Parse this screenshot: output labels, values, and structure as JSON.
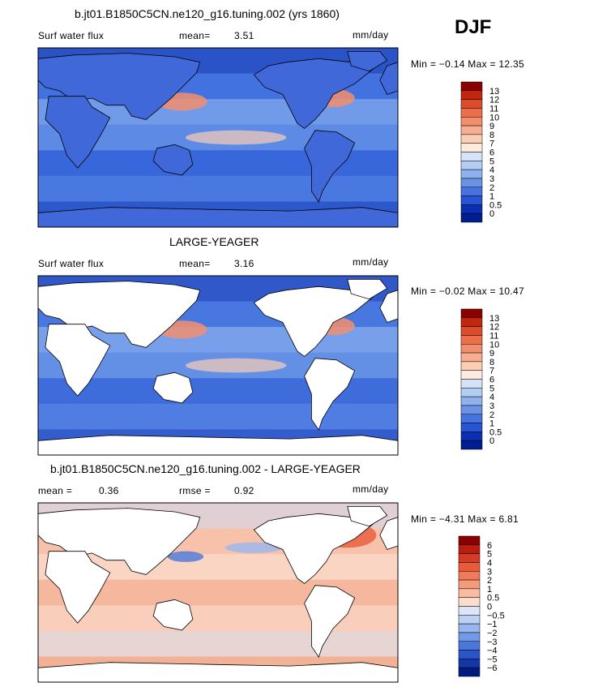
{
  "season": "DJF",
  "units": "mm/day",
  "land_color": "#ffffff",
  "panels": [
    {
      "title": "b.jt01.B1850C5CN.ne120_g16.tuning.002 (yrs 1860)",
      "variable": "Surf water flux",
      "stat1_label": "mean=",
      "stat1_value": "3.51",
      "stat2_label": "",
      "stat2_value": "",
      "units": "mm/day",
      "minmax_text": "Min =  −0.14 Max =  12.35",
      "colorbar": {
        "labels": [
          "13",
          "12",
          "11",
          "10",
          "9",
          "8",
          "7",
          "6",
          "5",
          "4",
          "3",
          "2",
          "1",
          "0.5",
          "0"
        ],
        "colors": [
          "#8b0000",
          "#c1260e",
          "#de4b28",
          "#ea6f4a",
          "#f28e6e",
          "#f7ad91",
          "#fbcdb5",
          "#fdeadd",
          "#d6e3f7",
          "#b4cdf3",
          "#8fb2ee",
          "#6a93e6",
          "#4673df",
          "#2654d3",
          "#0a2fb4",
          "#001e8c"
        ]
      },
      "ocean_fill": "#4d7fe3",
      "land_fill": "#4068d8"
    },
    {
      "title": "LARGE-YEAGER",
      "variable": "Surf water flux",
      "stat1_label": "mean=",
      "stat1_value": "3.16",
      "stat2_label": "",
      "stat2_value": "",
      "units": "mm/day",
      "minmax_text": "Min =  −0.02 Max =  10.47",
      "colorbar": {
        "labels": [
          "13",
          "12",
          "11",
          "10",
          "9",
          "8",
          "7",
          "6",
          "5",
          "4",
          "3",
          "2",
          "1",
          "0.5",
          "0"
        ],
        "colors": [
          "#8b0000",
          "#c1260e",
          "#de4b28",
          "#ea6f4a",
          "#f28e6e",
          "#f7ad91",
          "#fbcdb5",
          "#fdeadd",
          "#d6e3f7",
          "#b4cdf3",
          "#8fb2ee",
          "#6a93e6",
          "#4673df",
          "#2654d3",
          "#0a2fb4",
          "#001e8c"
        ]
      },
      "ocean_fill": "#5b8ae5",
      "land_fill": "#ffffff"
    },
    {
      "title": "b.jt01.B1850C5CN.ne120_g16.tuning.002 - LARGE-YEAGER",
      "variable": "",
      "stat1_label": "mean =",
      "stat1_value": "0.36",
      "stat2_label": "rmse =",
      "stat2_value": "0.92",
      "units": "mm/day",
      "minmax_text": "Min =  −4.31 Max =   6.81",
      "colorbar": {
        "labels": [
          "6",
          "5",
          "4",
          "3",
          "2",
          "1",
          "0.5",
          "0",
          "−0.5",
          "−1",
          "−2",
          "−3",
          "−4",
          "−5",
          "−6"
        ],
        "colors": [
          "#8b0000",
          "#b81d10",
          "#d63a22",
          "#e85a3c",
          "#f17a5a",
          "#f69a7c",
          "#f9bba2",
          "#fcdccc",
          "#dce6f7",
          "#bcd0f3",
          "#98b7ee",
          "#7199e5",
          "#4b77da",
          "#2a55c9",
          "#1237a8",
          "#001a7e"
        ]
      },
      "ocean_fill": "#f6c1a8",
      "land_fill": "#ffffff"
    }
  ],
  "chart_data": [
    {
      "type": "heatmap",
      "title": "b.jt01.B1850C5CN.ne120_g16.tuning.002 (yrs 1860)",
      "variable": "Surf water flux",
      "units": "mm/day",
      "season": "DJF",
      "mean": 3.51,
      "min": -0.14,
      "max": 12.35,
      "colorbar_levels": [
        0,
        0.5,
        1,
        2,
        3,
        4,
        5,
        6,
        7,
        8,
        9,
        10,
        11,
        12,
        13
      ],
      "lon_range": [
        0,
        360
      ],
      "lat_range": [
        -90,
        90
      ]
    },
    {
      "type": "heatmap",
      "title": "LARGE-YEAGER",
      "variable": "Surf water flux",
      "units": "mm/day",
      "mean": 3.16,
      "min": -0.02,
      "max": 10.47,
      "colorbar_levels": [
        0,
        0.5,
        1,
        2,
        3,
        4,
        5,
        6,
        7,
        8,
        9,
        10,
        11,
        12,
        13
      ],
      "lon_range": [
        0,
        360
      ],
      "lat_range": [
        -90,
        90
      ]
    },
    {
      "type": "heatmap",
      "title": "b.jt01.B1850C5CN.ne120_g16.tuning.002 - LARGE-YEAGER",
      "units": "mm/day",
      "mean": 0.36,
      "rmse": 0.92,
      "min": -4.31,
      "max": 6.81,
      "colorbar_levels": [
        -6,
        -5,
        -4,
        -3,
        -2,
        -1,
        -0.5,
        0,
        0.5,
        1,
        2,
        3,
        4,
        5,
        6
      ],
      "lon_range": [
        0,
        360
      ],
      "lat_range": [
        -90,
        90
      ]
    }
  ]
}
